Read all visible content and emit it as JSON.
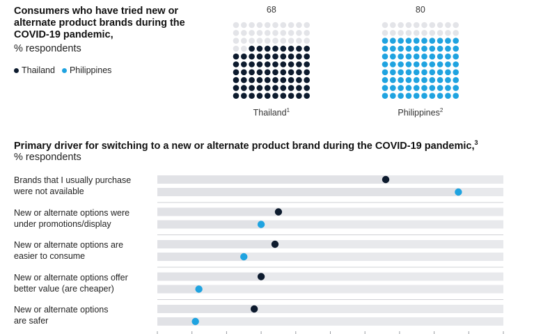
{
  "waffle": {
    "title": "Consumers who have tried new or alternate product brands during the COVID-19 pandemic,",
    "subtitle": "% respondents",
    "legend": [
      {
        "label": "Thailand",
        "color": "#0d1b2e"
      },
      {
        "label": "Philippines",
        "color": "#1fa3e0"
      }
    ]
  },
  "dotplot": {
    "title": "Primary driver for switching to a new or alternate product brand during the COVID-19 pandemic,",
    "title_footnote": "3",
    "subtitle": "% respondents"
  },
  "chart_data": [
    {
      "type": "waffle",
      "grid": "10 x 10 dots",
      "empty_color": "#e3e4e8",
      "series": [
        {
          "name": "Thailand",
          "label": "Thailand",
          "footnote": "1",
          "value": 68,
          "color": "#0d1b2e"
        },
        {
          "name": "Philippines",
          "label": "Philippines",
          "footnote": "2",
          "value": 80,
          "color": "#1fa3e0"
        }
      ]
    },
    {
      "type": "dot",
      "xlim": [
        0,
        100
      ],
      "grid": false,
      "series_colors": {
        "Thailand": "#0d1b2e",
        "Philippines": "#1fa3e0"
      },
      "categories": [
        "Brands that I usually purchase were not available",
        "New or alternate options were under promotions/display",
        "New or alternate options are easier to consume",
        "New or alternate options offer better value (are cheaper)",
        "New or alternate options are safer"
      ],
      "category_lines": [
        [
          "Brands that I usually purchase",
          "were not available"
        ],
        [
          "New or alternate options were",
          "under promotions/display"
        ],
        [
          "New or alternate options are",
          "easier to consume"
        ],
        [
          "New or alternate options offer",
          "better value (are cheaper)"
        ],
        [
          "New or alternate options",
          "are safer"
        ]
      ],
      "series": [
        {
          "name": "Thailand",
          "values": [
            66,
            35,
            34,
            30,
            28
          ]
        },
        {
          "name": "Philippines",
          "values": [
            87,
            30,
            25,
            12,
            11
          ]
        }
      ]
    }
  ]
}
